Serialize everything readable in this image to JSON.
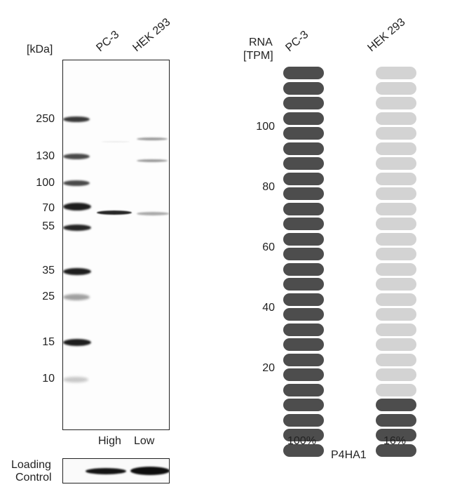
{
  "western_blot": {
    "kda_label": "[kDa]",
    "lanes": [
      {
        "name": "PC-3",
        "level": "High"
      },
      {
        "name": "HEK 293",
        "level": "Low"
      }
    ],
    "markers": [
      "250",
      "130",
      "100",
      "70",
      "55",
      "35",
      "25",
      "15",
      "10"
    ],
    "loading_control_line1": "Loading",
    "loading_control_line2": "Control"
  },
  "rna": {
    "title_line1": "RNA",
    "title_line2": "[TPM]",
    "y_ticks": [
      "100",
      "80",
      "60",
      "40",
      "20"
    ],
    "columns": [
      {
        "name": "PC-3",
        "percent": "100%",
        "filled": 1.0
      },
      {
        "name": "HEK 293",
        "percent": "16%",
        "filled": 0.16
      }
    ],
    "gene": "P4HA1",
    "colors": {
      "filled": "#4d4d4d",
      "empty": "#d3d3d3"
    }
  }
}
